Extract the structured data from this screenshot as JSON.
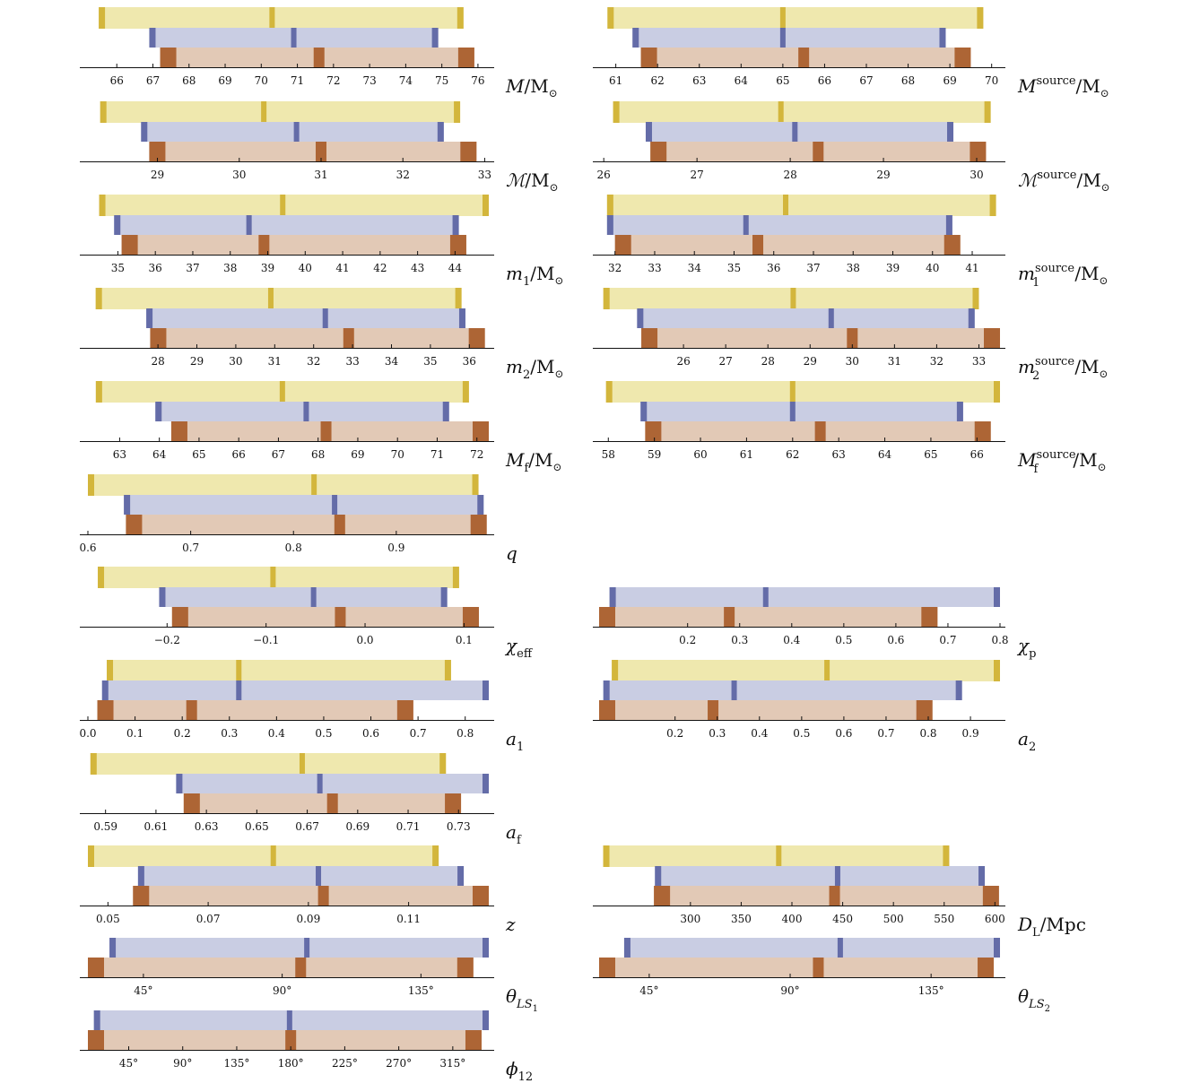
{
  "colors": {
    "yellow_fill": "#efe8ae",
    "yellow_mark": "#d3b63c",
    "blue_fill": "#c9cde3",
    "blue_mark": "#646ca8",
    "brown_fill": "#e2c9b6",
    "brown_mark": "#ad6535",
    "axis": "#111111"
  },
  "chart_data": [
    {
      "name": "M_det",
      "type": "interval-bars",
      "label_html": "<tspan font-style='italic'>M</tspan><tspan font-style='normal'>/M</tspan><tspan font-style='normal' font-size='12' dy='5'>⊙</tspan>",
      "ticks": [
        66,
        67,
        68,
        69,
        70,
        71,
        72,
        73,
        74,
        75,
        76
      ],
      "tick_labels": [
        "66",
        "67",
        "68",
        "69",
        "70",
        "71",
        "72",
        "73",
        "74",
        "75",
        "76"
      ],
      "xlim": [
        65.2,
        76.3
      ],
      "bars": [
        {
          "lo": 65.5,
          "med": 70.3,
          "hi": 75.6
        },
        {
          "lo": 66.9,
          "med": 70.9,
          "hi": 74.9
        },
        {
          "lo": 67.2,
          "med": 71.6,
          "hi": 75.9
        }
      ]
    },
    {
      "name": "M_src",
      "type": "interval-bars",
      "label_html": "<tspan font-style='italic'>M</tspan><tspan font-style='normal' font-size='13' dy='-9'>source</tspan><tspan font-style='normal' dy='9'>/M</tspan><tspan font-style='normal' font-size='12' dy='5'>⊙</tspan>",
      "ticks": [
        61,
        62,
        63,
        64,
        65,
        66,
        67,
        68,
        69,
        70
      ],
      "tick_labels": [
        "61",
        "62",
        "63",
        "64",
        "65",
        "66",
        "67",
        "68",
        "69",
        "70"
      ],
      "xlim": [
        60.6,
        70.2
      ],
      "bars": [
        {
          "lo": 60.8,
          "med": 65.0,
          "hi": 69.8
        },
        {
          "lo": 61.4,
          "med": 65.0,
          "hi": 68.9
        },
        {
          "lo": 61.6,
          "med": 65.5,
          "hi": 69.5
        }
      ]
    },
    {
      "name": "Mc_det",
      "type": "interval-bars",
      "label_html": "<tspan font-style='italic'>ℳ</tspan><tspan font-style='normal'>/M</tspan><tspan font-style='normal' font-size='12' dy='5'>⊙</tspan>",
      "ticks": [
        29,
        30,
        31,
        32,
        33
      ],
      "tick_labels": [
        "29",
        "30",
        "31",
        "32",
        "33"
      ],
      "xlim": [
        28.15,
        33.05
      ],
      "bars": [
        {
          "lo": 28.3,
          "med": 30.3,
          "hi": 32.7
        },
        {
          "lo": 28.8,
          "med": 30.7,
          "hi": 32.5
        },
        {
          "lo": 28.9,
          "med": 31.0,
          "hi": 32.9
        }
      ]
    },
    {
      "name": "Mc_src",
      "type": "interval-bars",
      "label_html": "<tspan font-style='italic'>ℳ</tspan><tspan font-style='normal' font-size='13' dy='-9'>source</tspan><tspan font-style='normal' dy='9'>/M</tspan><tspan font-style='normal' font-size='12' dy='5'>⊙</tspan>",
      "ticks": [
        26,
        27,
        28,
        29,
        30
      ],
      "tick_labels": [
        "26",
        "27",
        "28",
        "29",
        "30"
      ],
      "xlim": [
        25.95,
        30.25
      ],
      "bars": [
        {
          "lo": 26.1,
          "med": 27.9,
          "hi": 30.15
        },
        {
          "lo": 26.45,
          "med": 28.05,
          "hi": 29.75
        },
        {
          "lo": 26.5,
          "med": 28.3,
          "hi": 30.1
        }
      ]
    },
    {
      "name": "m1_det",
      "type": "interval-bars",
      "label_html": "<tspan font-style='italic'>m</tspan><tspan font-style='normal' font-size='13' dy='6'>1</tspan><tspan font-style='normal' dy='-6'>/M</tspan><tspan font-style='normal' font-size='12' dy='5'>⊙</tspan>",
      "ticks": [
        35,
        36,
        37,
        38,
        39,
        40,
        41,
        42,
        43,
        44
      ],
      "tick_labels": [
        "35",
        "36",
        "37",
        "38",
        "39",
        "40",
        "41",
        "42",
        "43",
        "44"
      ],
      "xlim": [
        34.2,
        44.9
      ],
      "bars": [
        {
          "lo": 34.5,
          "med": 39.4,
          "hi": 44.9
        },
        {
          "lo": 34.9,
          "med": 38.5,
          "hi": 44.1
        },
        {
          "lo": 35.1,
          "med": 38.9,
          "hi": 44.3
        }
      ]
    },
    {
      "name": "m1_src",
      "type": "interval-bars",
      "label_html": "<tspan font-style='italic'>m</tspan><tspan font-style='normal' font-size='13' dy='-9'>source</tspan><tspan font-style='normal' font-size='13' dx='-47' dy='16'>1</tspan><tspan font-style='normal' dx='39' dy='-7'>/M</tspan><tspan font-style='normal' font-size='12' dy='5'>⊙</tspan>",
      "ticks": [
        32,
        33,
        34,
        35,
        36,
        37,
        38,
        39,
        40,
        41
      ],
      "tick_labels": [
        "32",
        "33",
        "34",
        "35",
        "36",
        "37",
        "38",
        "39",
        "40",
        "41"
      ],
      "xlim": [
        31.6,
        41.7
      ],
      "bars": [
        {
          "lo": 31.8,
          "med": 36.3,
          "hi": 41.6
        },
        {
          "lo": 31.8,
          "med": 35.3,
          "hi": 40.5
        },
        {
          "lo": 32.0,
          "med": 35.6,
          "hi": 40.7
        }
      ]
    },
    {
      "name": "m2_det",
      "type": "interval-bars",
      "label_html": "<tspan font-style='italic'>m</tspan><tspan font-style='normal' font-size='13' dy='6'>2</tspan><tspan font-style='normal' dy='-6'>/M</tspan><tspan font-style='normal' font-size='12' dy='5'>⊙</tspan>",
      "ticks": [
        28,
        29,
        30,
        31,
        32,
        33,
        34,
        35,
        36
      ],
      "tick_labels": [
        "28",
        "29",
        "30",
        "31",
        "32",
        "33",
        "34",
        "35",
        "36"
      ],
      "xlim": [
        26.2,
        36.5
      ],
      "bars": [
        {
          "lo": 26.4,
          "med": 30.9,
          "hi": 35.8
        },
        {
          "lo": 27.7,
          "med": 32.3,
          "hi": 35.9
        },
        {
          "lo": 27.8,
          "med": 32.9,
          "hi": 36.4
        }
      ]
    },
    {
      "name": "m2_src",
      "type": "interval-bars",
      "label_html": "<tspan font-style='italic'>m</tspan><tspan font-style='normal' font-size='13' dy='-9'>source</tspan><tspan font-style='normal' font-size='13' dx='-47' dy='16'>2</tspan><tspan font-style='normal' dx='39' dy='-7'>/M</tspan><tspan font-style='normal' font-size='12' dy='5'>⊙</tspan>",
      "ticks": [
        26,
        27,
        28,
        29,
        30,
        31,
        32,
        33
      ],
      "tick_labels": [
        "26",
        "27",
        "28",
        "29",
        "30",
        "31",
        "32",
        "33"
      ],
      "xlim": [
        24.0,
        33.5
      ],
      "bars": [
        {
          "lo": 24.1,
          "med": 28.6,
          "hi": 33.0
        },
        {
          "lo": 24.9,
          "med": 29.5,
          "hi": 32.9
        },
        {
          "lo": 25.0,
          "med": 30.0,
          "hi": 33.5
        }
      ]
    },
    {
      "name": "Mf_det",
      "type": "interval-bars",
      "label_html": "<tspan font-style='italic'>M</tspan><tspan font-style='normal' font-size='13' dy='6'>f</tspan><tspan font-style='normal' dy='-6'>/M</tspan><tspan font-style='normal' font-size='12' dy='5'>⊙</tspan>",
      "ticks": [
        63,
        64,
        65,
        66,
        67,
        68,
        69,
        70,
        71,
        72
      ],
      "tick_labels": [
        "63",
        "64",
        "65",
        "66",
        "67",
        "68",
        "69",
        "70",
        "71",
        "72"
      ],
      "xlim": [
        62.2,
        72.3
      ],
      "bars": [
        {
          "lo": 62.4,
          "med": 67.1,
          "hi": 71.8
        },
        {
          "lo": 63.9,
          "med": 67.7,
          "hi": 71.3
        },
        {
          "lo": 64.3,
          "med": 68.2,
          "hi": 72.3
        }
      ]
    },
    {
      "name": "Mf_src",
      "type": "interval-bars",
      "label_html": "<tspan font-style='italic'>M</tspan><tspan font-style='normal' font-size='13' dy='-9'>source</tspan><tspan font-style='normal' font-size='13' dx='-47' dy='16'>f</tspan><tspan font-style='normal' dx='39' dy='-7'>/M</tspan><tspan font-style='normal' font-size='12' dy='5'>⊙</tspan>",
      "ticks": [
        58,
        59,
        60,
        61,
        62,
        63,
        64,
        65,
        66
      ],
      "tick_labels": [
        "58",
        "59",
        "60",
        "61",
        "62",
        "63",
        "64",
        "65",
        "66"
      ],
      "xlim": [
        57.8,
        66.5
      ],
      "bars": [
        {
          "lo": 57.95,
          "med": 62.0,
          "hi": 66.5
        },
        {
          "lo": 58.7,
          "med": 62.0,
          "hi": 65.7
        },
        {
          "lo": 58.8,
          "med": 62.6,
          "hi": 66.3
        }
      ]
    },
    {
      "name": "q",
      "type": "interval-bars",
      "label_html": "<tspan font-style='italic'>q</tspan>",
      "ticks": [
        0.6,
        0.7,
        0.8,
        0.9
      ],
      "tick_labels": [
        "0.6",
        "0.7",
        "0.8",
        "0.9"
      ],
      "xlim": [
        0.6,
        0.99
      ],
      "bars": [
        {
          "lo": 0.6,
          "med": 0.82,
          "hi": 0.98
        },
        {
          "lo": 0.635,
          "med": 0.84,
          "hi": 0.985
        },
        {
          "lo": 0.637,
          "med": 0.845,
          "hi": 0.988
        }
      ]
    },
    {
      "name": "chi_eff",
      "type": "interval-bars",
      "label_html": "<tspan font-style='italic'>χ</tspan><tspan font-style='normal' font-size='13' dy='6'>eff</tspan>",
      "ticks": [
        -0.2,
        -0.1,
        0.0,
        0.1
      ],
      "tick_labels": [
        "−0.2",
        "−0.1",
        "0.0",
        "0.1"
      ],
      "xlim": [
        -0.28,
        0.125
      ],
      "bars": [
        {
          "lo": -0.27,
          "med": -0.093,
          "hi": 0.095
        },
        {
          "lo": -0.208,
          "med": -0.052,
          "hi": 0.083
        },
        {
          "lo": -0.195,
          "med": -0.025,
          "hi": 0.115
        }
      ]
    },
    {
      "name": "chi_p",
      "type": "interval-bars",
      "label_html": "<tspan font-style='italic'>χ</tspan><tspan font-style='normal' font-size='13' dy='6'>p</tspan>",
      "ticks": [
        0.2,
        0.3,
        0.4,
        0.5,
        0.6,
        0.7,
        0.8
      ],
      "tick_labels": [
        "0.2",
        "0.3",
        "0.4",
        "0.5",
        "0.6",
        "0.7",
        "0.8"
      ],
      "xlim": [
        0.03,
        0.8
      ],
      "bars": [
        null,
        {
          "lo": 0.05,
          "med": 0.35,
          "hi": 0.8
        },
        {
          "lo": 0.03,
          "med": 0.28,
          "hi": 0.68
        }
      ]
    },
    {
      "name": "a1",
      "type": "interval-bars",
      "label_html": "<tspan font-style='italic'>a</tspan><tspan font-style='normal' font-size='13' dy='6'>1</tspan>",
      "ticks": [
        0.0,
        0.1,
        0.2,
        0.3,
        0.4,
        0.5,
        0.6,
        0.7,
        0.8
      ],
      "tick_labels": [
        "0.0",
        "0.1",
        "0.2",
        "0.3",
        "0.4",
        "0.5",
        "0.6",
        "0.7",
        "0.8"
      ],
      "xlim": [
        0.0,
        0.85
      ],
      "bars": [
        {
          "lo": 0.04,
          "med": 0.32,
          "hi": 0.77
        },
        {
          "lo": 0.03,
          "med": 0.32,
          "hi": 0.85
        },
        {
          "lo": 0.02,
          "med": 0.22,
          "hi": 0.69
        }
      ]
    },
    {
      "name": "a2",
      "type": "interval-bars",
      "label_html": "<tspan font-style='italic'>a</tspan><tspan font-style='normal' font-size='13' dy='6'>2</tspan>",
      "ticks": [
        0.2,
        0.3,
        0.4,
        0.5,
        0.6,
        0.7,
        0.8,
        0.9
      ],
      "tick_labels": [
        "0.2",
        "0.3",
        "0.4",
        "0.5",
        "0.6",
        "0.7",
        "0.8",
        "0.9"
      ],
      "xlim": [
        0.02,
        0.97
      ],
      "bars": [
        {
          "lo": 0.05,
          "med": 0.56,
          "hi": 0.97
        },
        {
          "lo": 0.03,
          "med": 0.34,
          "hi": 0.88
        },
        {
          "lo": 0.02,
          "med": 0.29,
          "hi": 0.81
        }
      ]
    },
    {
      "name": "af",
      "type": "interval-bars",
      "label_html": "<tspan font-style='italic'>a</tspan><tspan font-style='normal' font-size='13' dy='6'>f</tspan>",
      "ticks": [
        0.59,
        0.61,
        0.63,
        0.65,
        0.67,
        0.69,
        0.71,
        0.73
      ],
      "tick_labels": [
        "0.59",
        "0.61",
        "0.63",
        "0.65",
        "0.67",
        "0.69",
        "0.71",
        "0.73"
      ],
      "xlim": [
        0.583,
        0.742
      ],
      "bars": [
        {
          "lo": 0.584,
          "med": 0.668,
          "hi": 0.725
        },
        {
          "lo": 0.618,
          "med": 0.675,
          "hi": 0.742
        },
        {
          "lo": 0.621,
          "med": 0.68,
          "hi": 0.731
        }
      ]
    },
    {
      "name": "z",
      "type": "interval-bars",
      "label_html": "<tspan font-style='italic'>z</tspan>",
      "ticks": [
        0.05,
        0.07,
        0.09,
        0.11
      ],
      "tick_labels": [
        "0.05",
        "0.07",
        "0.09",
        "0.11"
      ],
      "xlim": [
        0.046,
        0.126
      ],
      "bars": [
        {
          "lo": 0.046,
          "med": 0.083,
          "hi": 0.116
        },
        {
          "lo": 0.056,
          "med": 0.092,
          "hi": 0.121
        },
        {
          "lo": 0.055,
          "med": 0.093,
          "hi": 0.126
        }
      ]
    },
    {
      "name": "D_L",
      "type": "interval-bars",
      "label_html": "<tspan font-style='italic'>D</tspan><tspan font-style='normal' font-size='13' dy='6'>L</tspan><tspan font-style='normal' dy='-6'>/Mpc</tspan>",
      "ticks": [
        300,
        350,
        400,
        450,
        500,
        550,
        600
      ],
      "tick_labels": [
        "300",
        "350",
        "400",
        "450",
        "500",
        "550",
        "600"
      ],
      "xlim": [
        210,
        605
      ],
      "bars": [
        {
          "lo": 214,
          "med": 387,
          "hi": 555
        },
        {
          "lo": 265,
          "med": 445,
          "hi": 590
        },
        {
          "lo": 264,
          "med": 442,
          "hi": 604
        }
      ]
    },
    {
      "name": "theta_LS1",
      "type": "interval-bars",
      "label_html": "<tspan font-style='italic'>θ</tspan><tspan font-style='italic' font-size='13' dy='6'>LS</tspan><tspan font-style='normal' font-size='10' dy='4'>1</tspan>",
      "ticks": [
        45,
        90,
        135
      ],
      "tick_labels": [
        "45°",
        "90°",
        "135°"
      ],
      "xlim": [
        27,
        157
      ],
      "bars": [
        null,
        {
          "lo": 34,
          "med": 98,
          "hi": 157
        },
        {
          "lo": 27,
          "med": 96,
          "hi": 152
        }
      ]
    },
    {
      "name": "theta_LS2",
      "type": "interval-bars",
      "label_html": "<tspan font-style='italic'>θ</tspan><tspan font-style='italic' font-size='13' dy='6'>LS</tspan><tspan font-style='normal' font-size='10' dy='4'>2</tspan>",
      "ticks": [
        45,
        90,
        135
      ],
      "tick_labels": [
        "45°",
        "90°",
        "135°"
      ],
      "xlim": [
        29,
        157
      ],
      "bars": [
        null,
        {
          "lo": 37,
          "med": 106,
          "hi": 157
        },
        {
          "lo": 29,
          "med": 99,
          "hi": 155
        }
      ]
    },
    {
      "name": "phi12",
      "type": "interval-bars",
      "label_html": "<tspan font-style='italic'>ϕ</tspan><tspan font-style='normal' font-size='13' dy='6'>12</tspan>",
      "ticks": [
        45,
        90,
        135,
        180,
        225,
        270,
        315
      ],
      "tick_labels": [
        "45°",
        "90°",
        "135°",
        "180°",
        "225°",
        "270°",
        "315°"
      ],
      "xlim": [
        11,
        345
      ],
      "bars": [
        null,
        {
          "lo": 16,
          "med": 179,
          "hi": 345
        },
        {
          "lo": 11,
          "med": 180,
          "hi": 339
        }
      ]
    }
  ]
}
